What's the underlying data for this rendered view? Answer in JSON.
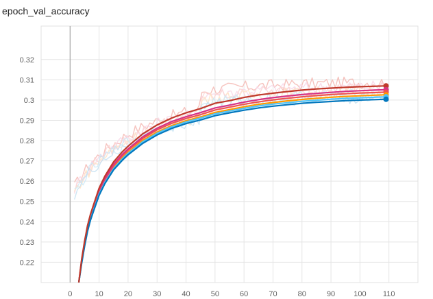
{
  "chart_data": {
    "type": "line",
    "title": "epoch_val_accuracy",
    "xlabel": "",
    "ylabel": "",
    "xlim": [
      -10,
      120
    ],
    "ylim": [
      0.21,
      0.3365
    ],
    "x_ticks": [
      0,
      10,
      20,
      30,
      40,
      50,
      60,
      70,
      80,
      90,
      100,
      110
    ],
    "y_ticks": [
      0.22,
      0.23,
      0.24,
      0.25,
      0.26,
      0.27,
      0.28,
      0.29,
      0.3,
      0.31,
      0.32
    ],
    "x_tick_labels": [
      "0",
      "10",
      "20",
      "30",
      "40",
      "50",
      "60",
      "70",
      "80",
      "90",
      "100",
      "110"
    ],
    "y_tick_labels": [
      "0.22",
      "0.23",
      "0.24",
      "0.25",
      "0.26",
      "0.27",
      "0.28",
      "0.29",
      "0.3",
      "0.31",
      "0.32"
    ],
    "grid": true,
    "zero_line_x": 0,
    "series": [
      {
        "color": "#c0392b",
        "raw_color": "#f5b7b1",
        "x": [
          3,
          4,
          5,
          6,
          7,
          8,
          10,
          12,
          15,
          18,
          20,
          25,
          30,
          35,
          40,
          45,
          50,
          55,
          60,
          65,
          70,
          75,
          80,
          85,
          90,
          95,
          100,
          105,
          109
        ],
        "values": [
          0.21,
          0.2215,
          0.2305,
          0.238,
          0.2435,
          0.248,
          0.2565,
          0.2625,
          0.2695,
          0.2745,
          0.2772,
          0.2833,
          0.2877,
          0.2911,
          0.2937,
          0.2958,
          0.2984,
          0.2997,
          0.3013,
          0.3025,
          0.3034,
          0.3042,
          0.3049,
          0.3055,
          0.3059,
          0.3063,
          0.3066,
          0.3068,
          0.307
        ]
      },
      {
        "color": "#d63384",
        "raw_color": "#f8d7e8",
        "x": [
          3,
          4,
          5,
          6,
          7,
          8,
          10,
          12,
          15,
          18,
          20,
          25,
          30,
          35,
          40,
          45,
          50,
          55,
          60,
          65,
          70,
          75,
          80,
          85,
          90,
          95,
          100,
          105,
          109
        ],
        "values": [
          0.21,
          0.221,
          0.2298,
          0.2372,
          0.2428,
          0.2472,
          0.2555,
          0.2614,
          0.2683,
          0.2732,
          0.2759,
          0.2818,
          0.2861,
          0.2894,
          0.2918,
          0.2938,
          0.2961,
          0.2975,
          0.299,
          0.3002,
          0.3012,
          0.302,
          0.3027,
          0.3033,
          0.3038,
          0.3043,
          0.3046,
          0.3049,
          0.3051
        ]
      },
      {
        "color": "#ef5350",
        "raw_color": "#fcd5d3",
        "x": [
          3,
          4,
          5,
          6,
          7,
          8,
          10,
          12,
          15,
          18,
          20,
          25,
          30,
          35,
          40,
          45,
          50,
          55,
          60,
          65,
          70,
          75,
          80,
          85,
          90,
          95,
          100,
          105,
          109
        ],
        "values": [
          0.21,
          0.2205,
          0.2292,
          0.2366,
          0.2421,
          0.2465,
          0.2548,
          0.2607,
          0.2676,
          0.2725,
          0.2752,
          0.281,
          0.2853,
          0.2885,
          0.2909,
          0.2928,
          0.2951,
          0.2965,
          0.2979,
          0.2991,
          0.3001,
          0.3009,
          0.3016,
          0.3022,
          0.3027,
          0.3031,
          0.3035,
          0.3037,
          0.3039
        ]
      },
      {
        "color": "#ff9800",
        "raw_color": "#ffe3c4",
        "x": [
          3,
          4,
          5,
          6,
          7,
          8,
          10,
          12,
          15,
          18,
          20,
          25,
          30,
          35,
          40,
          45,
          50,
          55,
          60,
          65,
          70,
          75,
          80,
          85,
          90,
          95,
          100,
          105,
          109
        ],
        "values": [
          0.21,
          0.22,
          0.2287,
          0.236,
          0.2415,
          0.2458,
          0.254,
          0.2598,
          0.2667,
          0.2715,
          0.2742,
          0.28,
          0.2842,
          0.2874,
          0.2898,
          0.2917,
          0.2939,
          0.2953,
          0.2967,
          0.2979,
          0.2988,
          0.2996,
          0.3003,
          0.3009,
          0.3014,
          0.3018,
          0.3021,
          0.3024,
          0.3026
        ]
      },
      {
        "color": "#4fc3f7",
        "raw_color": "#cde9f6",
        "x": [
          3,
          4,
          5,
          6,
          7,
          8,
          10,
          12,
          15,
          18,
          20,
          25,
          30,
          35,
          40,
          45,
          50,
          55,
          60,
          65,
          70,
          75,
          80,
          85,
          90,
          95,
          100,
          105,
          109
        ],
        "values": [
          0.21,
          0.2198,
          0.2284,
          0.2356,
          0.2411,
          0.2454,
          0.2536,
          0.2594,
          0.2662,
          0.271,
          0.2737,
          0.2794,
          0.2836,
          0.2868,
          0.2892,
          0.2911,
          0.2932,
          0.2946,
          0.2959,
          0.2971,
          0.298,
          0.2987,
          0.2994,
          0.2999,
          0.3004,
          0.3008,
          0.3011,
          0.3014,
          0.3016
        ]
      },
      {
        "color": "#0277bd",
        "raw_color": "#c6e2f2",
        "x": [
          3,
          4,
          5,
          6,
          7,
          8,
          10,
          12,
          15,
          18,
          20,
          25,
          30,
          35,
          40,
          45,
          50,
          55,
          60,
          65,
          70,
          75,
          80,
          85,
          90,
          95,
          100,
          105,
          109
        ],
        "values": [
          0.21,
          0.2195,
          0.228,
          0.2352,
          0.2406,
          0.2449,
          0.253,
          0.2588,
          0.2656,
          0.2703,
          0.273,
          0.2786,
          0.2828,
          0.286,
          0.2884,
          0.2902,
          0.2923,
          0.2937,
          0.295,
          0.2961,
          0.297,
          0.2977,
          0.2984,
          0.2989,
          0.2993,
          0.2997,
          0.3,
          0.3002,
          0.3004
        ]
      }
    ]
  }
}
